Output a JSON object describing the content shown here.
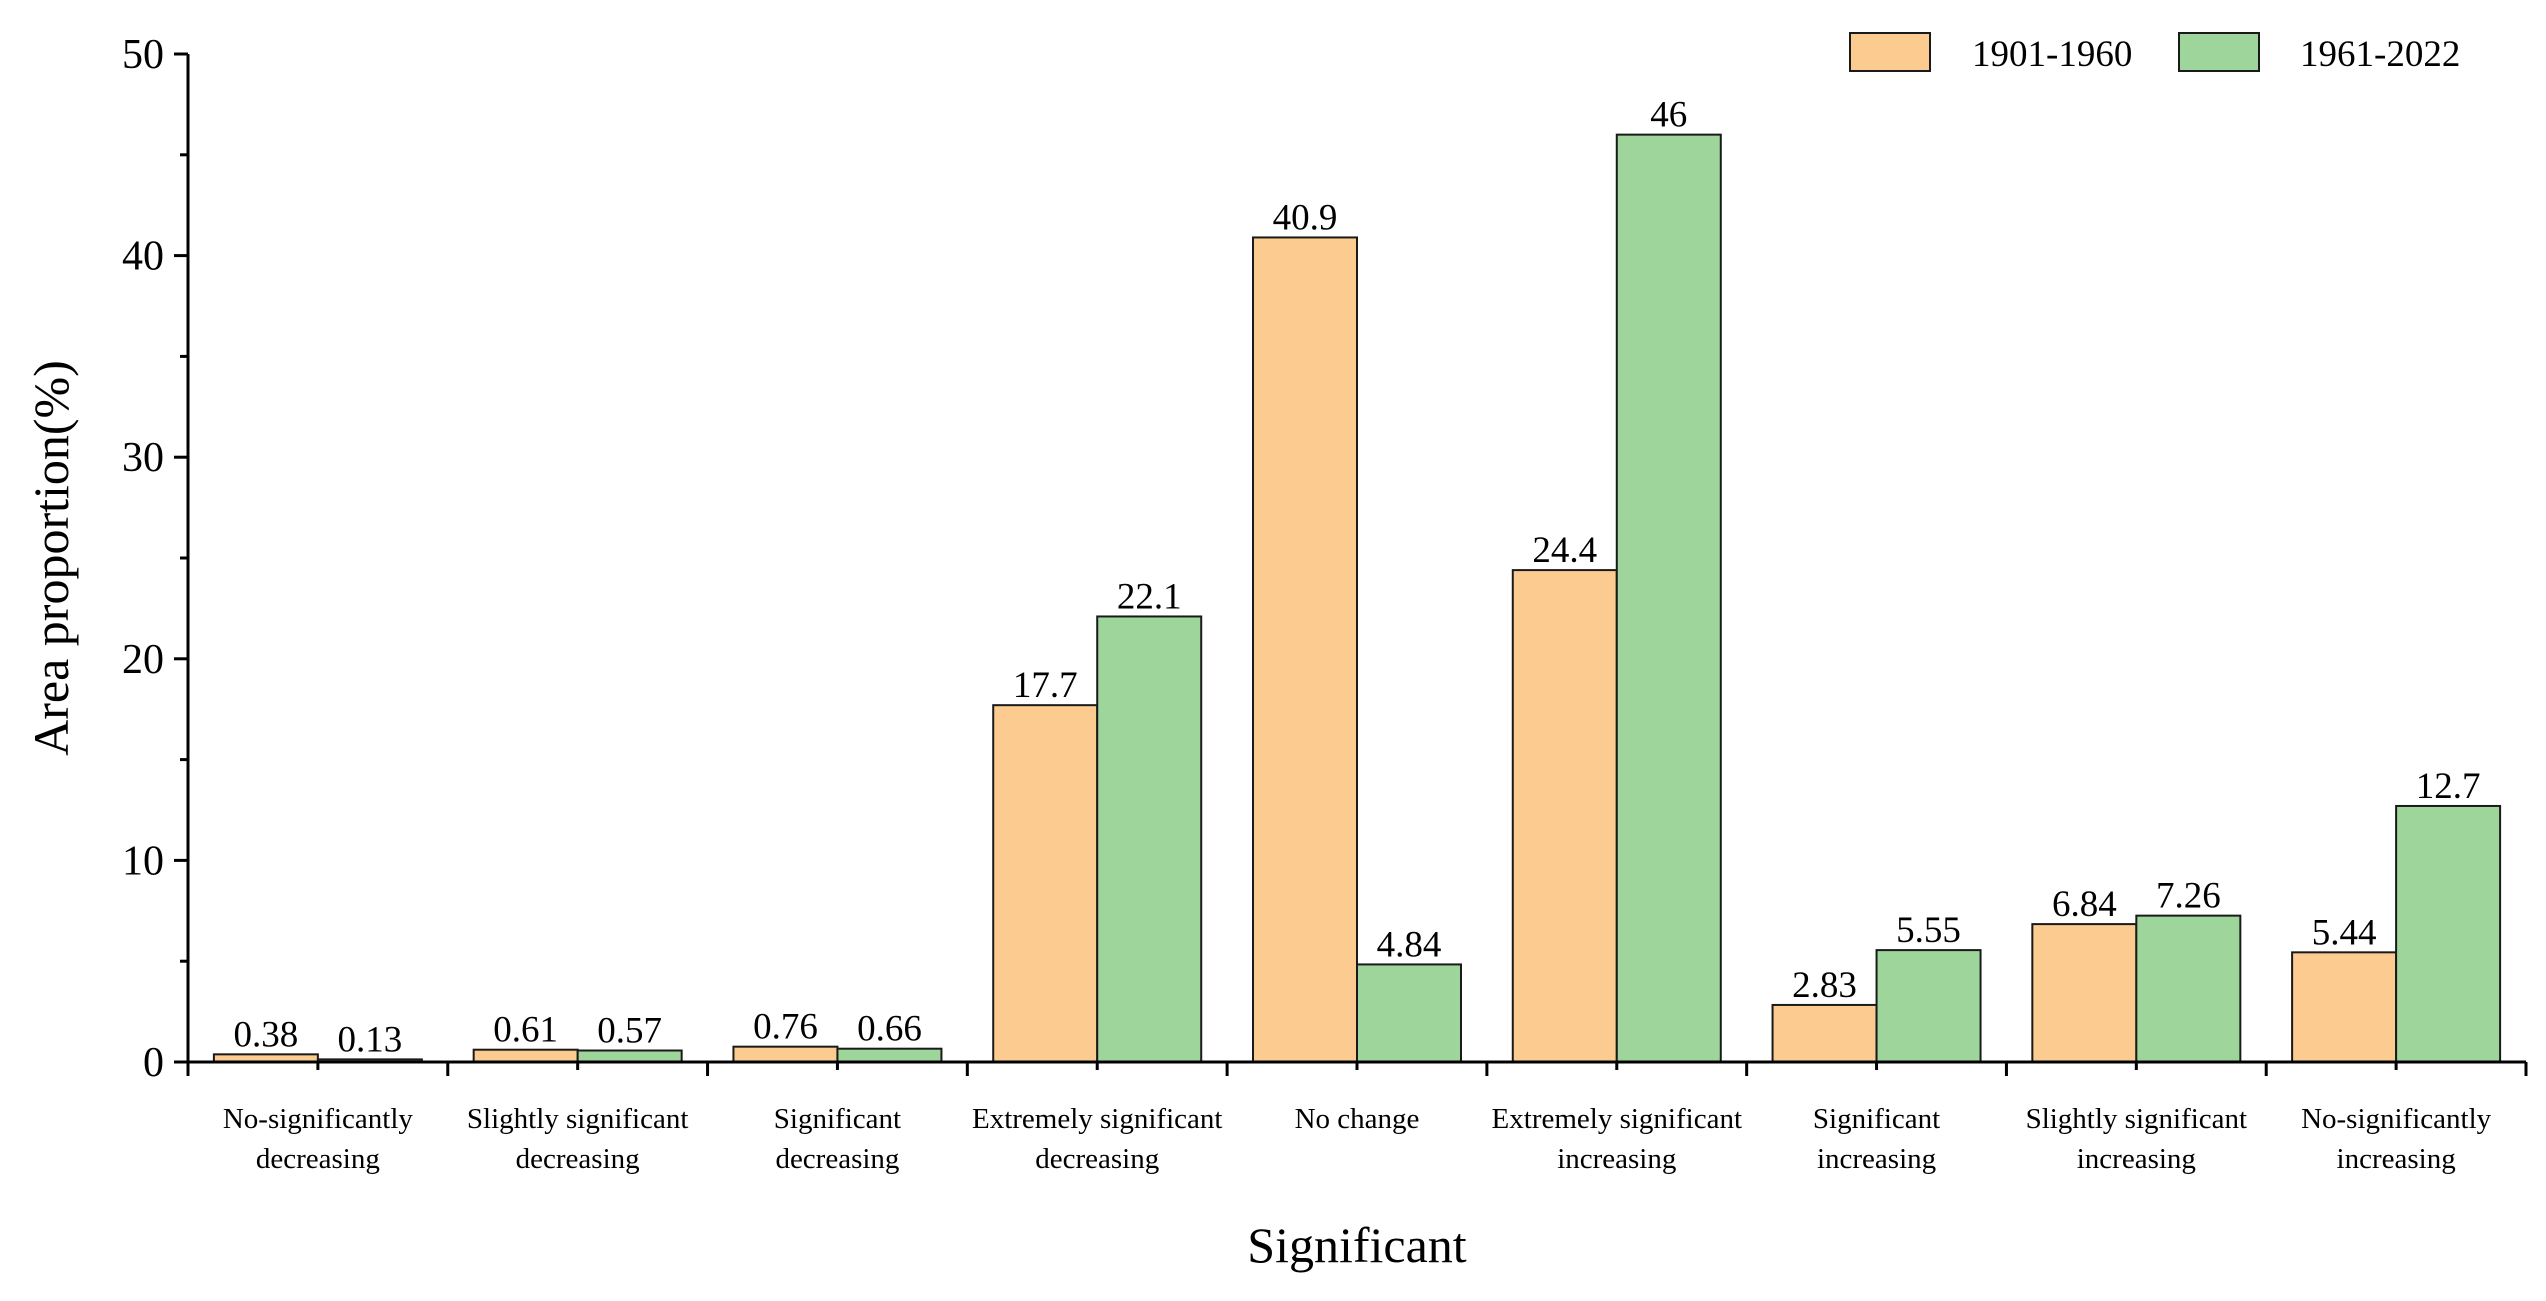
{
  "chart_data": {
    "type": "bar",
    "title": "",
    "xlabel": "Significant",
    "ylabel": "Area proportion(%)",
    "ylim": [
      0,
      50
    ],
    "yticks": [
      0,
      10,
      20,
      30,
      40,
      50
    ],
    "legend_position": "top-right",
    "categories": [
      [
        "No-significantly",
        "decreasing"
      ],
      [
        "Slightly significant",
        "decreasing"
      ],
      [
        "Significant",
        "decreasing"
      ],
      [
        "Extremely significant",
        "decreasing"
      ],
      [
        "No change"
      ],
      [
        "Extremely significant",
        "increasing"
      ],
      [
        "Significant",
        "increasing"
      ],
      [
        "Slightly significant",
        "increasing"
      ],
      [
        "No-significantly",
        "increasing"
      ]
    ],
    "series": [
      {
        "name": "1901-1960",
        "color": "#FCCB8F",
        "values": [
          0.38,
          0.61,
          0.76,
          17.7,
          40.9,
          24.4,
          2.83,
          6.84,
          5.44
        ],
        "labels": [
          "0.38",
          "0.61",
          "0.76",
          "17.7",
          "40.9",
          "24.4",
          "2.83",
          "6.84",
          "5.44"
        ]
      },
      {
        "name": "1961-2022",
        "color": "#9ED59B",
        "values": [
          0.13,
          0.57,
          0.66,
          22.1,
          4.84,
          46,
          5.55,
          7.26,
          12.7
        ],
        "labels": [
          "0.13",
          "0.57",
          "0.66",
          "22.1",
          "4.84",
          "46",
          "5.55",
          "7.26",
          "12.7"
        ]
      }
    ]
  }
}
